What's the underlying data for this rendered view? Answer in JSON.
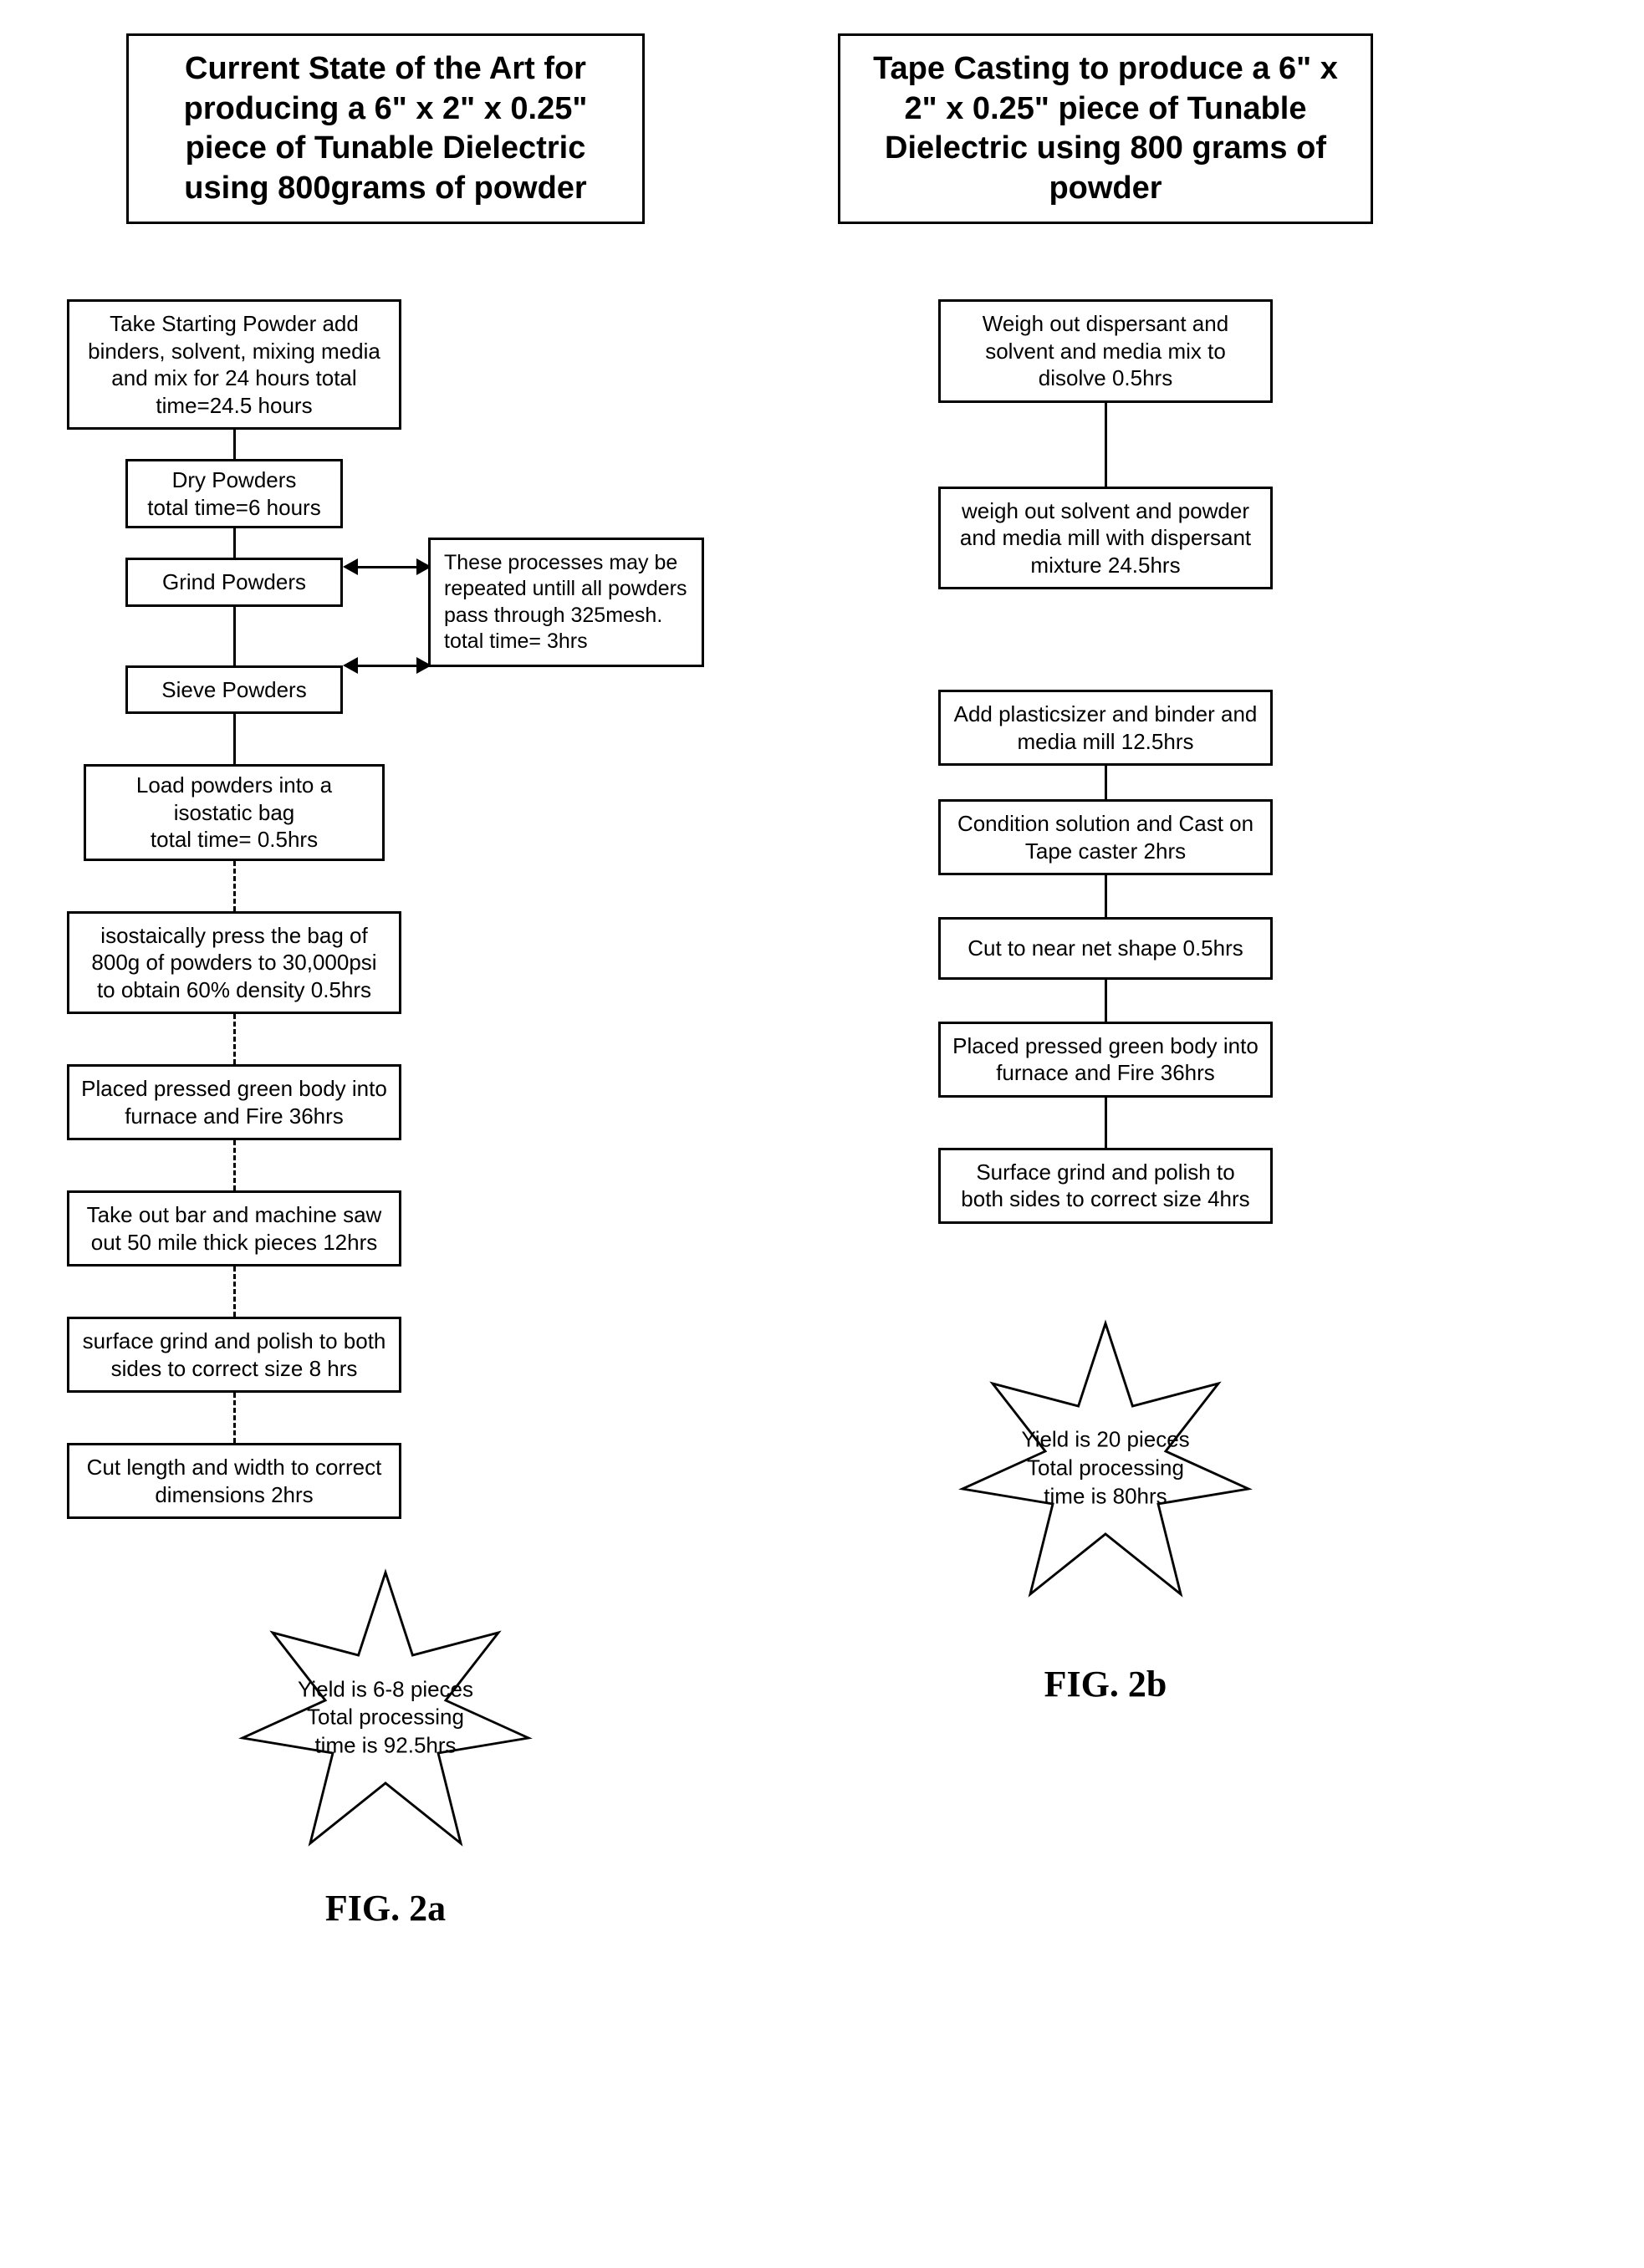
{
  "columnA": {
    "title": "Current State of the Art for producing a 6\" x 2\" x 0.25\" piece of Tunable Dielectric using 800grams of powder",
    "steps": [
      "Take Starting Powder add binders, solvent, mixing media and mix for 24 hours total time=24.5 hours",
      "Dry Powders\ntotal time=6 hours",
      "Grind Powders",
      "Sieve Powders",
      "Load powders into a isostatic bag\ntotal time= 0.5hrs",
      "isostaically press the bag of 800g of powders to 30,000psi to obtain 60% density 0.5hrs",
      "Placed pressed green body into furnace and Fire 36hrs",
      "Take out bar and machine saw out 50 mile thick pieces 12hrs",
      "surface grind and polish to both sides to correct size 8 hrs",
      "Cut length and width to correct dimensions 2hrs"
    ],
    "sideNote": "These processes may be repeated untill all powders pass through 325mesh.\ntotal time= 3hrs",
    "starText": "Yield is 6-8 pieces\nTotal processing time is 92.5hrs",
    "figLabel": "FIG. 2a"
  },
  "columnB": {
    "title": "Tape Casting to produce a 6\" x 2\" x 0.25\" piece of Tunable Dielectric using 800 grams of powder",
    "steps": [
      "Weigh out dispersant and solvent and media mix to disolve 0.5hrs",
      "weigh out solvent and powder and media mill with dispersant mixture 24.5hrs",
      "Add plasticsizer and binder and media mill 12.5hrs",
      "Condition solution and Cast on Tape caster 2hrs",
      "Cut to near net shape 0.5hrs",
      "Placed pressed green body into furnace and Fire 36hrs",
      "Surface grind and polish to both sides to correct size 4hrs"
    ],
    "starText": "Yield is 20 pieces\nTotal processing time is 80hrs",
    "figLabel": "FIG. 2b"
  },
  "style": {
    "border_color": "#000000",
    "background": "#ffffff",
    "title_fontsize": 38,
    "step_fontsize": 26,
    "star_size": 360,
    "connector_len_long": 60,
    "connector_len_short": 35,
    "connector_len_gap": 100,
    "harrow_len": 70
  }
}
